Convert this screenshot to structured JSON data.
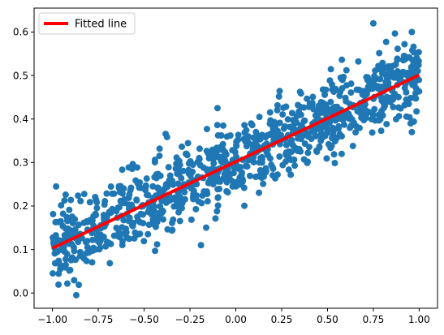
{
  "chart_data": {
    "type": "scatter",
    "xlim": [
      -1.1,
      1.1
    ],
    "ylim": [
      -0.035,
      0.655
    ],
    "x_ticks": [
      -1.0,
      -0.75,
      -0.5,
      -0.25,
      0.0,
      0.25,
      0.5,
      0.75,
      1.0
    ],
    "x_tick_labels": [
      "−1.00",
      "−0.75",
      "−0.50",
      "−0.25",
      "0.00",
      "0.25",
      "0.50",
      "0.75",
      "1.00"
    ],
    "y_ticks": [
      0.0,
      0.1,
      0.2,
      0.3,
      0.4,
      0.5,
      0.6
    ],
    "y_tick_labels": [
      "0.0",
      "0.1",
      "0.2",
      "0.3",
      "0.4",
      "0.5",
      "0.6"
    ],
    "grid": false,
    "legend": {
      "placement": "top-left",
      "entries": [
        {
          "label": "Fitted line",
          "color": "#ff0000"
        }
      ]
    },
    "series": [
      {
        "kind": "scatter",
        "color": "#1f77b4",
        "point_count": 1000,
        "x_range": [
          -1.0,
          1.0
        ],
        "noise_sd": 0.045
      },
      {
        "kind": "line",
        "name": "Fitted line",
        "color": "#ff0000",
        "x": [
          -1.0,
          1.0
        ],
        "y": [
          0.103,
          0.501
        ]
      }
    ],
    "outliers": [
      {
        "x": 0.75,
        "y": 0.62
      },
      {
        "x": 0.96,
        "y": 0.6
      },
      {
        "x": -0.87,
        "y": -0.005
      },
      {
        "x": -0.98,
        "y": 0.245
      },
      {
        "x": -0.19,
        "y": 0.11
      },
      {
        "x": 0.96,
        "y": 0.37
      },
      {
        "x": -0.1,
        "y": 0.425
      }
    ]
  }
}
